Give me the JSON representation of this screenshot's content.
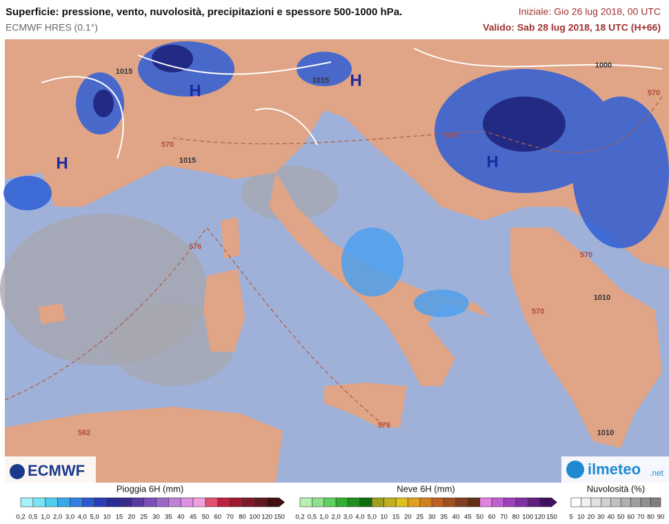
{
  "header": {
    "title": "Superficie: pressione, vento, nuvolosità, precipitazioni e spessore 500-1000 hPa.",
    "model": "ECMWF HRES (0.1°)",
    "init": "Iniziale: Gio 26 lug 2018, 00 UTC",
    "valid": "Valido: Sab 28 lug 2018, 18 UTC (H+66)"
  },
  "map": {
    "labels": [
      "H",
      "H",
      "H",
      "H",
      "1015",
      "1015",
      "1015",
      "570",
      "570",
      "576",
      "576",
      "582",
      "570",
      "570",
      "1010",
      "1010",
      "1000",
      "570"
    ]
  },
  "logos": {
    "left": "ECMWF",
    "right": "ilmeteo",
    "right_suffix": ".net"
  },
  "legends": [
    {
      "title": "Pioggia 6H (mm)",
      "ticks": [
        "0,2",
        "0,5",
        "1,0",
        "2,0",
        "3,0",
        "4,0",
        "5,0",
        "10",
        "15",
        "20",
        "25",
        "30",
        "35",
        "40",
        "45",
        "50",
        "60",
        "70",
        "80",
        "100",
        "120",
        "150"
      ],
      "colors": [
        "#a8f0f8",
        "#7ae4f5",
        "#4fcdf0",
        "#3aa8e8",
        "#3080e0",
        "#2a5ad0",
        "#2a3cb8",
        "#2a2a9a",
        "#3a2a8a",
        "#5a3aa0",
        "#7a50b8",
        "#9a68c8",
        "#c080d8",
        "#e090e0",
        "#f0a0e0",
        "#e05070",
        "#c02040",
        "#a01830",
        "#801828",
        "#601820",
        "#401010"
      ]
    },
    {
      "title": "Neve 6H (mm)",
      "ticks": [
        "0,2",
        "0,5",
        "1,0",
        "2,0",
        "3,0",
        "4,0",
        "5,0",
        "10",
        "15",
        "20",
        "25",
        "30",
        "35",
        "40",
        "45",
        "50",
        "60",
        "70",
        "80",
        "100",
        "120",
        "150"
      ],
      "colors": [
        "#b8f0b0",
        "#90e090",
        "#60d060",
        "#30b030",
        "#209020",
        "#107010",
        "#a0a020",
        "#c0b020",
        "#e0c020",
        "#e0a020",
        "#d08020",
        "#c06020",
        "#a05020",
        "#804020",
        "#603018",
        "#e080e0",
        "#c060d0",
        "#a040c0",
        "#8030a0",
        "#602080",
        "#401060"
      ]
    },
    {
      "title": "Nuvolosità (%)",
      "ticks": [
        "5",
        "10",
        "20",
        "30",
        "40",
        "50",
        "60",
        "70",
        "80",
        "90"
      ],
      "colors": [
        "#ffffff",
        "#f0f0f0",
        "#e0e0e0",
        "#d0d0d0",
        "#c0c0c0",
        "#b0b0b0",
        "#a0a0a0",
        "#909090",
        "#808080"
      ]
    }
  ]
}
